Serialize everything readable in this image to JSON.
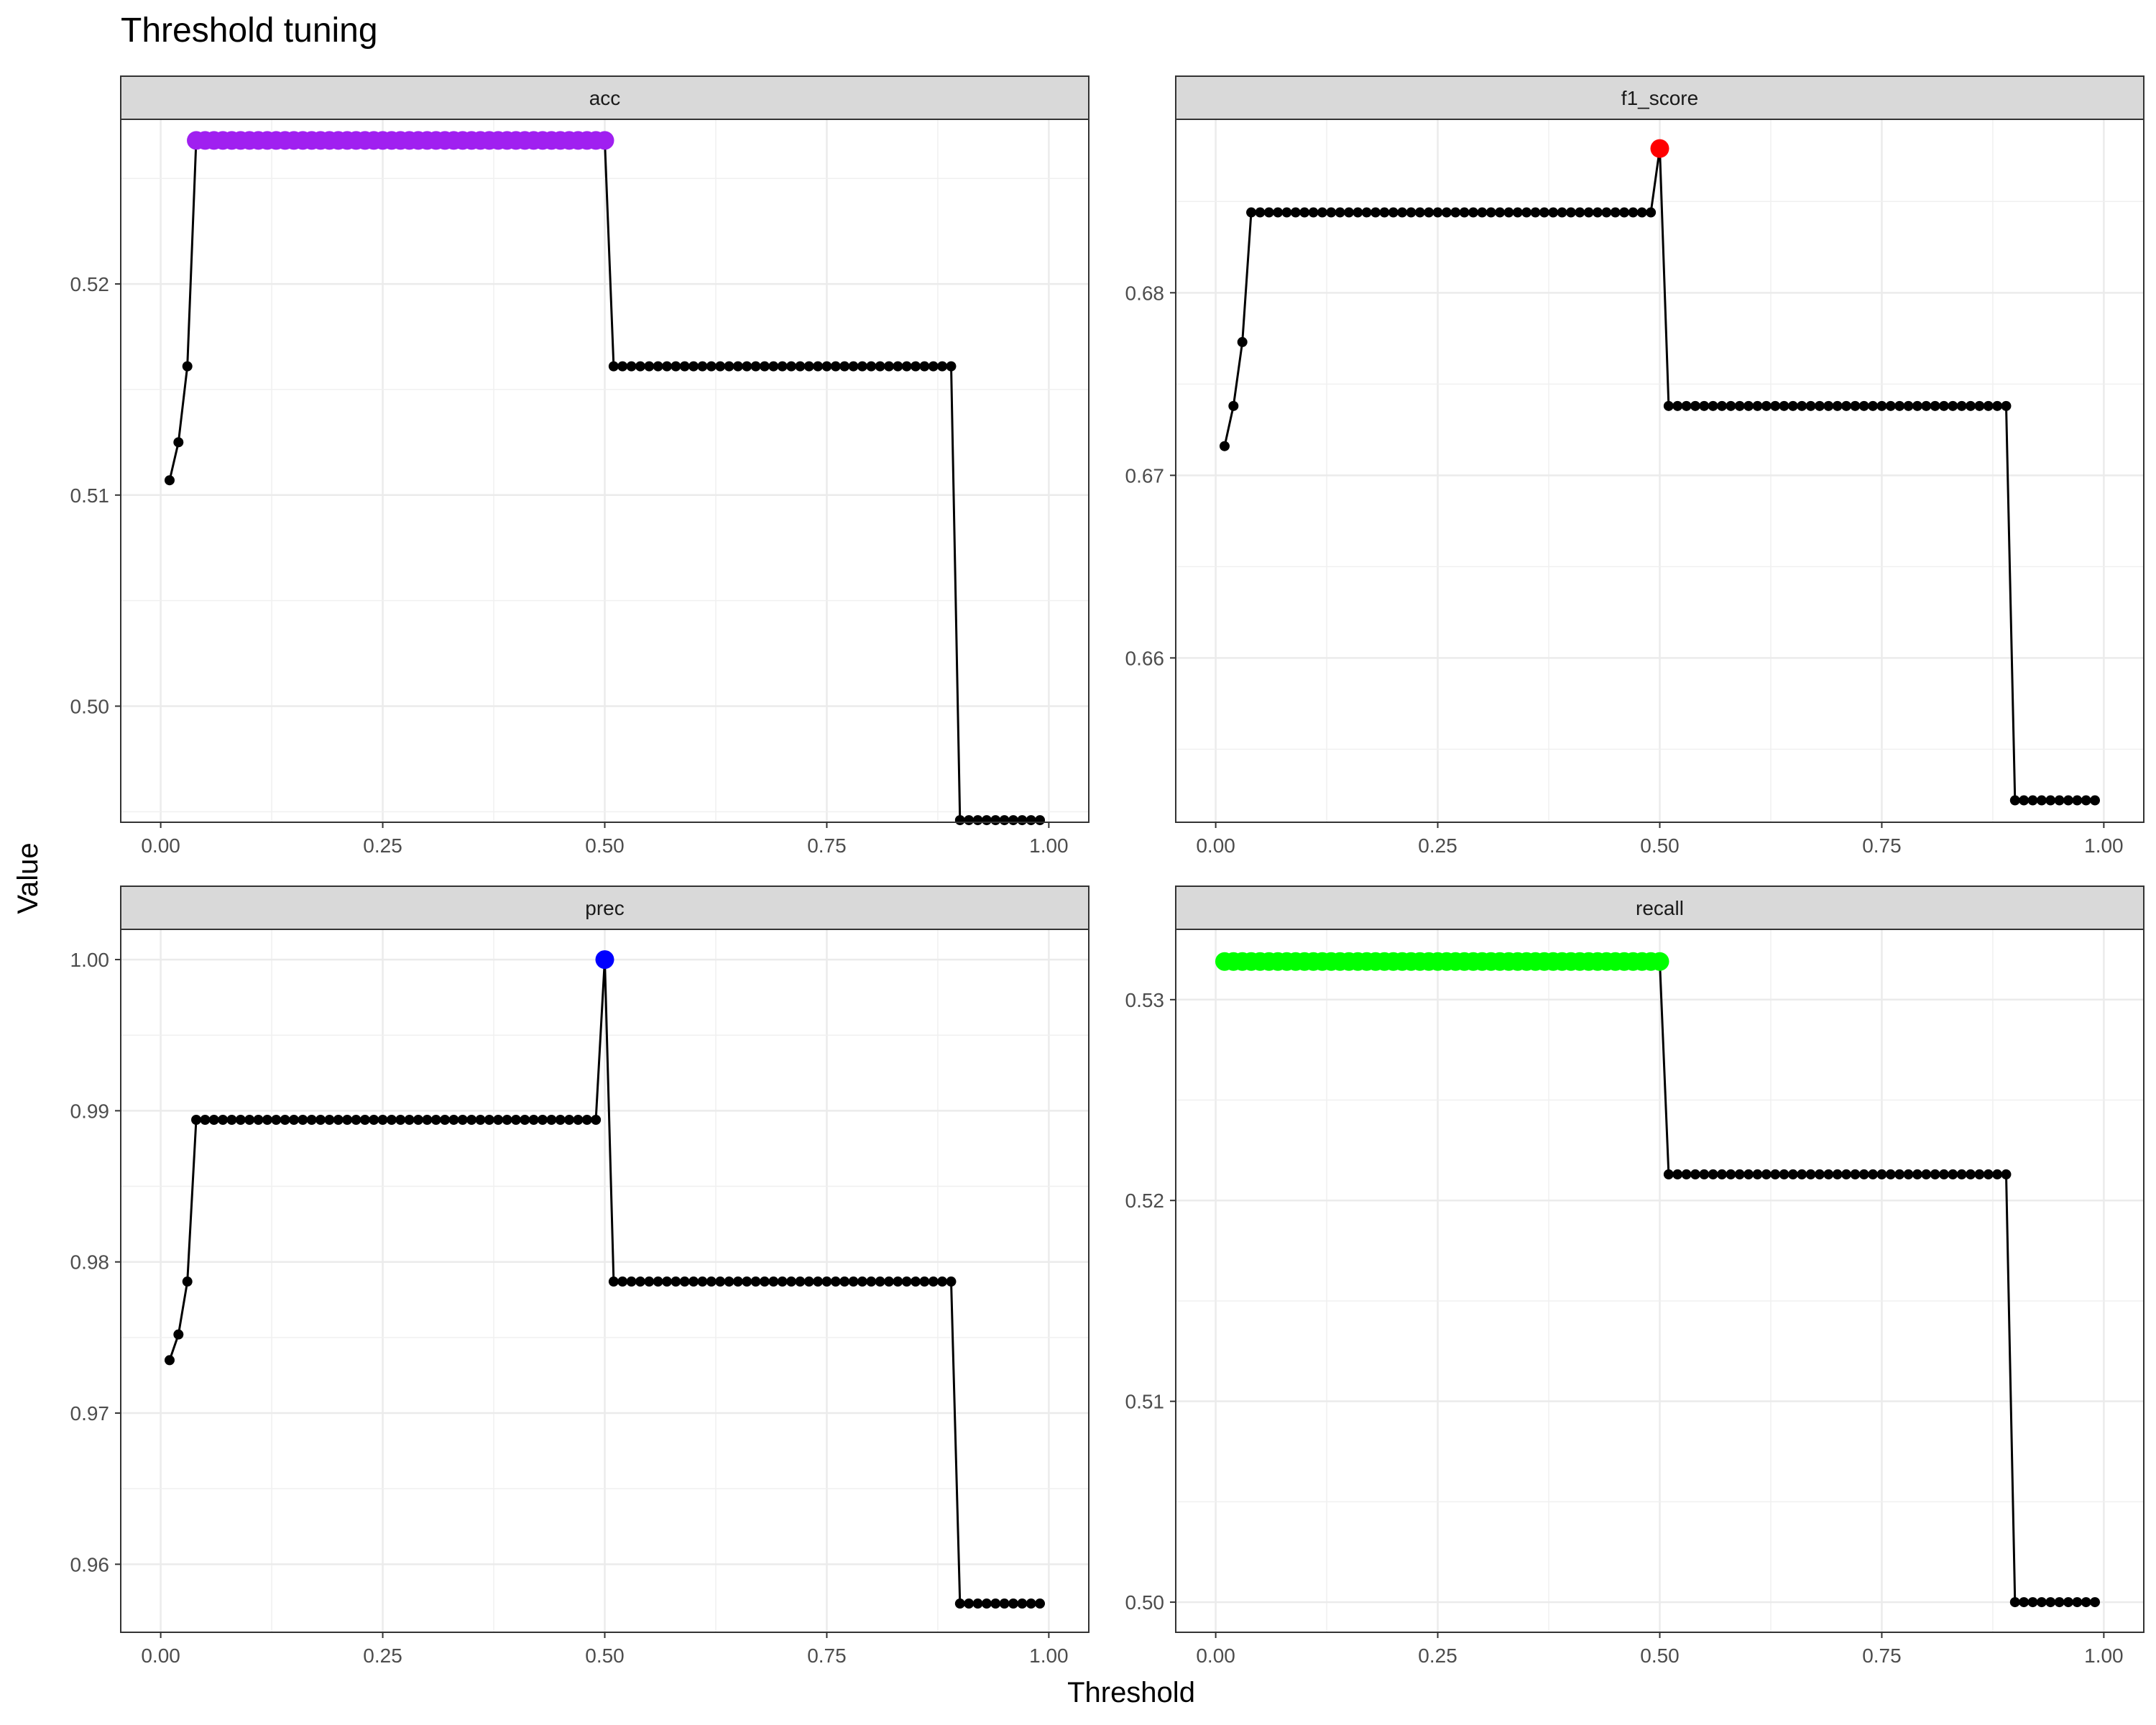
{
  "chart_data": {
    "type": "scatter",
    "title": "Threshold tuning",
    "xlabel": "Threshold",
    "ylabel": "Value",
    "xlim": [
      0,
      1
    ],
    "x_ticks": [
      "0.00",
      "0.25",
      "0.50",
      "0.75",
      "1.00"
    ],
    "line_color": "#000000",
    "point_color": "#000000",
    "panels": [
      {
        "name": "acc",
        "ylim": [
          0.4945,
          0.5278
        ],
        "y_ticks": [
          "0.50",
          "0.51",
          "0.52"
        ],
        "highlight_color": "#a020f0",
        "segments": [
          {
            "points": [
              [
                0.01,
                0.5107
              ],
              [
                0.02,
                0.5125
              ],
              [
                0.03,
                0.5161
              ]
            ]
          },
          {
            "start": 0.04,
            "end": 0.5,
            "value": 0.5268,
            "highlight": true
          },
          {
            "start": 0.51,
            "end": 0.89,
            "value": 0.5161
          },
          {
            "start": 0.9,
            "end": 0.99,
            "value": 0.4946
          }
        ]
      },
      {
        "name": "f1_score",
        "ylim": [
          0.651,
          0.6895
        ],
        "y_ticks": [
          "0.66",
          "0.67",
          "0.68"
        ],
        "highlight_color": "#ff0000",
        "segments": [
          {
            "points": [
              [
                0.01,
                0.6716
              ],
              [
                0.02,
                0.6738
              ],
              [
                0.03,
                0.6773
              ]
            ]
          },
          {
            "start": 0.04,
            "end": 0.49,
            "value": 0.6844
          },
          {
            "points": [
              [
                0.5,
                0.6879
              ]
            ],
            "highlight": true
          },
          {
            "start": 0.51,
            "end": 0.89,
            "value": 0.6738
          },
          {
            "start": 0.9,
            "end": 0.99,
            "value": 0.6522
          }
        ]
      },
      {
        "name": "prec",
        "ylim": [
          0.9555,
          1.002
        ],
        "y_ticks": [
          "0.96",
          "0.97",
          "0.98",
          "0.99",
          "1.00"
        ],
        "highlight_color": "#0000ff",
        "segments": [
          {
            "points": [
              [
                0.01,
                0.9735
              ],
              [
                0.02,
                0.9752
              ],
              [
                0.03,
                0.9787
              ]
            ]
          },
          {
            "start": 0.04,
            "end": 0.49,
            "value": 0.9894
          },
          {
            "points": [
              [
                0.5,
                1.0
              ]
            ],
            "highlight": true
          },
          {
            "start": 0.51,
            "end": 0.89,
            "value": 0.9787
          },
          {
            "start": 0.9,
            "end": 0.99,
            "value": 0.9574
          }
        ]
      },
      {
        "name": "recall",
        "ylim": [
          0.4985,
          0.5335
        ],
        "y_ticks": [
          "0.50",
          "0.51",
          "0.52",
          "0.53"
        ],
        "highlight_color": "#00ff00",
        "segments": [
          {
            "start": 0.01,
            "end": 0.5,
            "value": 0.5319,
            "highlight": true
          },
          {
            "start": 0.51,
            "end": 0.89,
            "value": 0.5213
          },
          {
            "start": 0.9,
            "end": 0.99,
            "value": 0.5
          }
        ]
      }
    ]
  }
}
